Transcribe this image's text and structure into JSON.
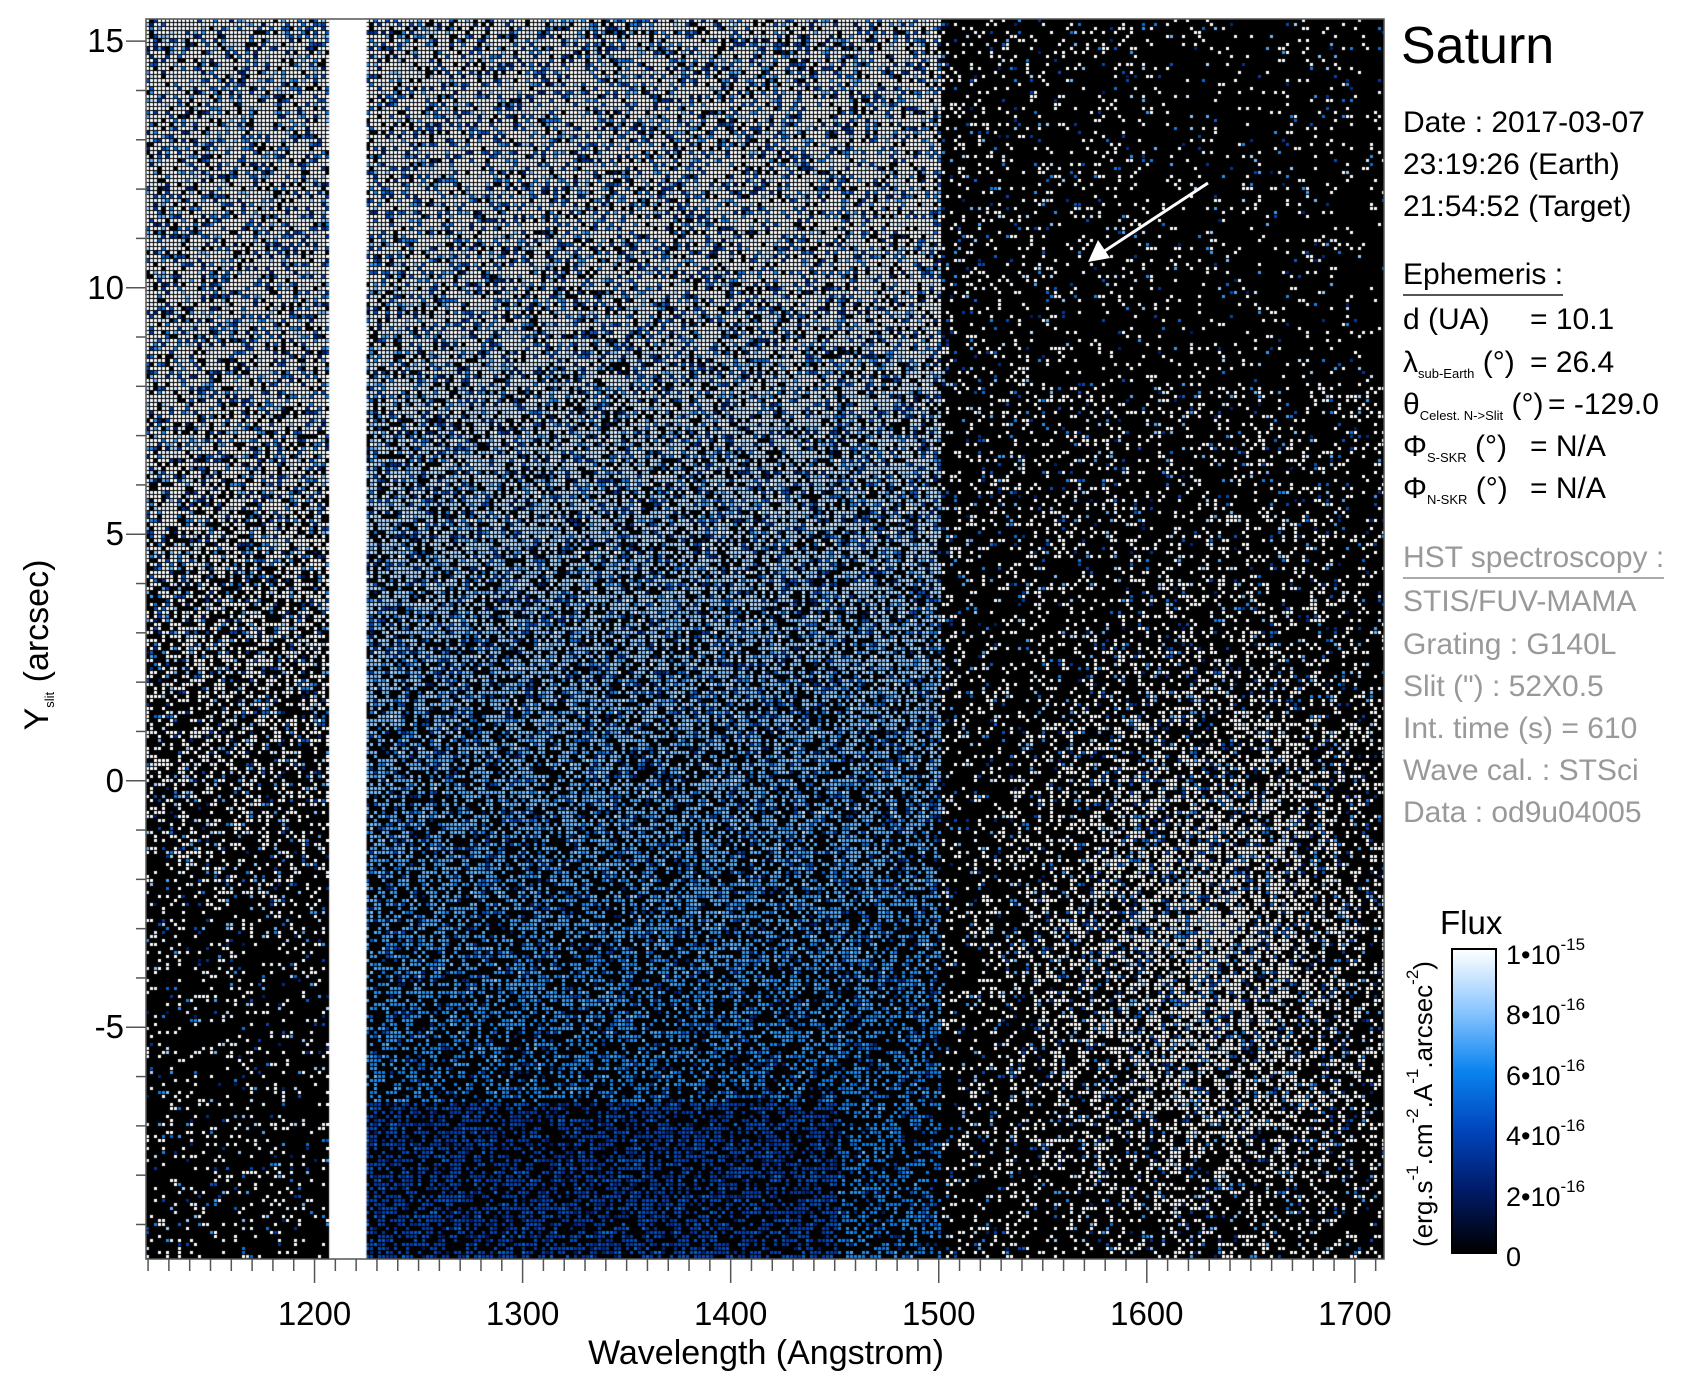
{
  "chart_data": {
    "type": "heatmap",
    "title": "Saturn",
    "xlabel": "Wavelength (Angstrom)",
    "ylabel_main": "Y",
    "ylabel_sub": "slit",
    "ylabel_unit": "(arcsec)",
    "xlim": [
      1119,
      1714
    ],
    "ylim": [
      -9.7,
      15.45
    ],
    "xticks": [
      1200,
      1300,
      1400,
      1500,
      1600,
      1700
    ],
    "xtick_labels": [
      "1200",
      "1300",
      "1400",
      "1500",
      "1600",
      "1700"
    ],
    "yticks": [
      15,
      10,
      5,
      0,
      -5
    ],
    "ytick_labels": [
      "15",
      "10",
      "5",
      "0",
      "-5"
    ],
    "saturated_band": [
      1207,
      1225
    ],
    "colorbar": {
      "title": "Flux",
      "label": "(erg.s-1.cm-2.A-1.arcsec-2)",
      "range": [
        0,
        1e-15
      ],
      "ticks": [
        0,
        2e-16,
        4e-16,
        6e-16,
        8e-16,
        1e-15
      ],
      "tick_labels": [
        {
          "mant": "0",
          "exp": ""
        },
        {
          "mant": "2•10",
          "exp": "-16"
        },
        {
          "mant": "4•10",
          "exp": "-16"
        },
        {
          "mant": "6•10",
          "exp": "-16"
        },
        {
          "mant": "8•10",
          "exp": "-16"
        },
        {
          "mant": "1•10",
          "exp": "-15"
        }
      ],
      "colors": [
        "#000000",
        "#001a66",
        "#0044bb",
        "#0a84f0",
        "#8cc6ff",
        "#ffffff"
      ]
    }
  },
  "info": {
    "target": "Saturn",
    "date": "Date : 2017-03-07",
    "time_earth": "23:19:26 (Earth)",
    "time_target": "21:54:52 (Target)",
    "ephemeris_heading": "Ephemeris :",
    "d": {
      "label": "d (UA)",
      "value": "= 10.1"
    },
    "lambda": {
      "sym": "λ",
      "sub": "sub-Earth",
      "unit": "(°)",
      "value": "= 26.4"
    },
    "theta": {
      "sym": "θ",
      "sub": "Celest. N->Slit",
      "unit": "(°)",
      "value": "= -129.0"
    },
    "phi_s": {
      "sym": "Φ",
      "sub": "S-SKR",
      "unit": "(°)",
      "value": "= N/A"
    },
    "phi_n": {
      "sym": "Φ",
      "sub": "N-SKR",
      "unit": "(°)",
      "value": "= N/A"
    },
    "hst_heading": "HST spectroscopy :",
    "instrument": "STIS/FUV-MAMA",
    "grating": "Grating : G140L",
    "slit": "Slit (\") : 52X0.5",
    "int_time": "Int. time (s) = 610",
    "wave_cal": "Wave cal. : STSci",
    "data_id": "Data : od9u04005"
  },
  "cb_label_parts": {
    "a": "(erg.s",
    "b": "-1",
    "c": ".cm",
    "d": "-2",
    "e": ".A",
    "f": "-1",
    "g": ".arcsec",
    "h": "-2",
    "i": ")"
  }
}
